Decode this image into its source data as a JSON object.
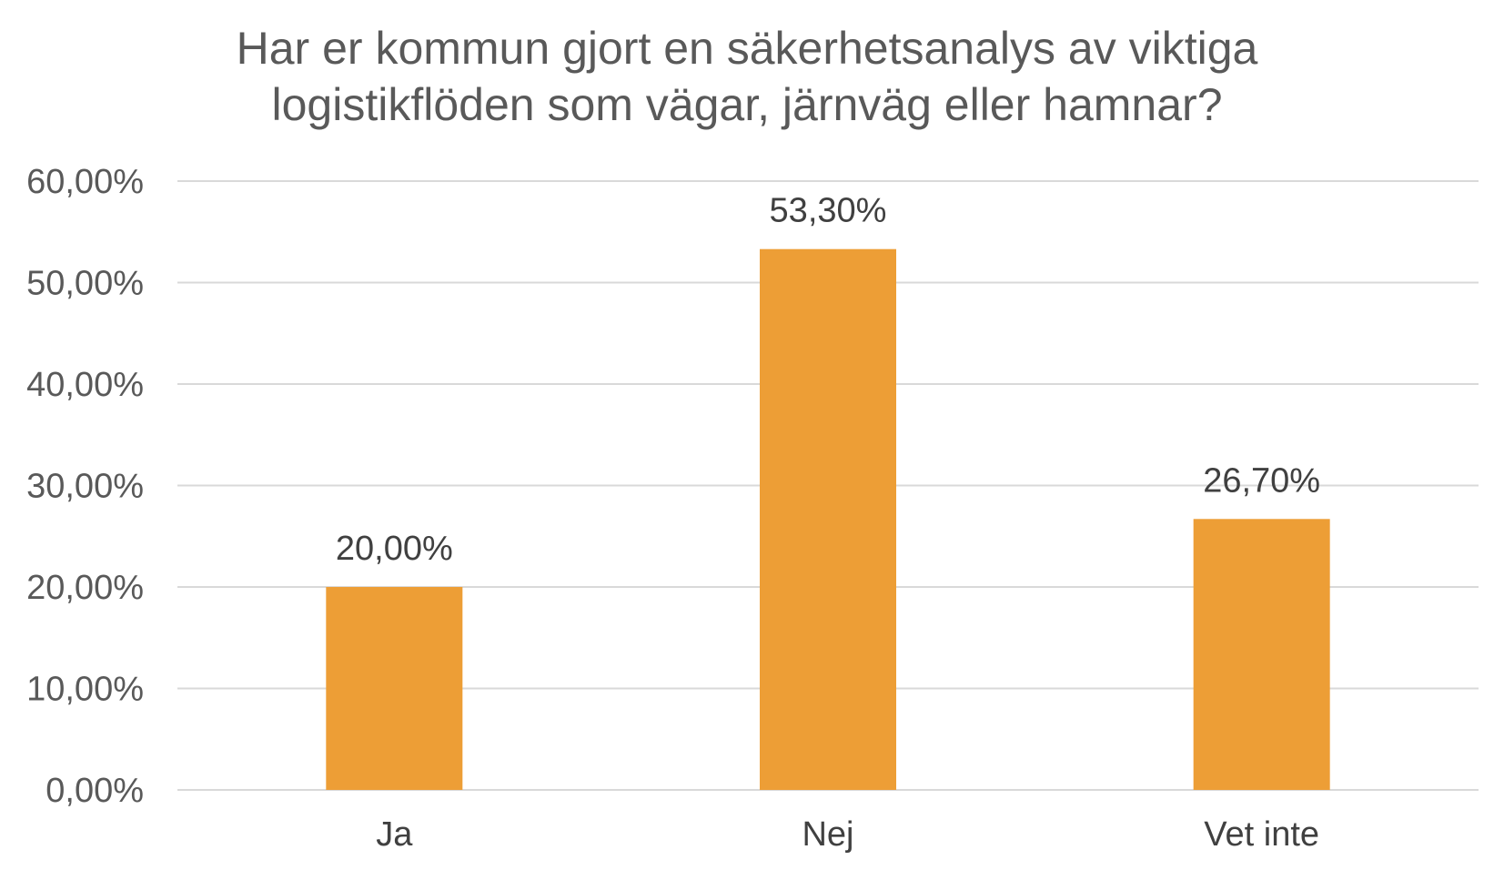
{
  "chart_data": {
    "type": "bar",
    "title_lines": [
      "Har er kommun gjort en säkerhetsanalys av viktiga",
      "logistikflöden som vägar, järnväg eller hamnar?"
    ],
    "categories": [
      "Ja",
      "Nej",
      "Vet inte"
    ],
    "values": [
      20.0,
      53.3,
      26.7
    ],
    "data_labels": [
      "20,00%",
      "53,30%",
      "26,70%"
    ],
    "xlabel": "",
    "ylabel": "",
    "ylim": [
      0,
      60
    ],
    "yticks": [
      0,
      10,
      20,
      30,
      40,
      50,
      60
    ],
    "ytick_labels": [
      "0,00%",
      "10,00%",
      "20,00%",
      "30,00%",
      "40,00%",
      "50,00%",
      "60,00%"
    ],
    "grid": true,
    "legend": "none",
    "bar_color": "#ED9E36",
    "grid_color": "#D9D9D9"
  }
}
